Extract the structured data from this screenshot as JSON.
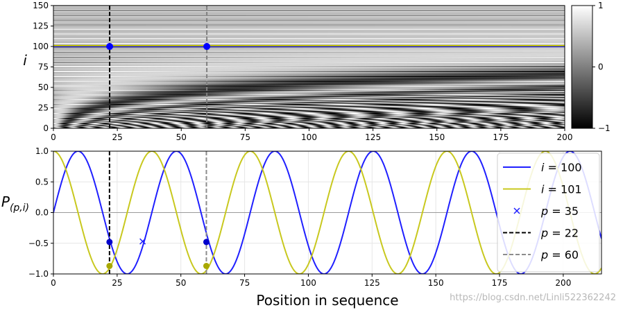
{
  "chart_data": [
    {
      "type": "heatmap",
      "ylabel": "i",
      "xlim": [
        0,
        200
      ],
      "ylim": [
        0,
        150
      ],
      "x_ticks": [
        "0",
        "25",
        "50",
        "75",
        "100",
        "125",
        "150",
        "175",
        "200"
      ],
      "y_ticks": [
        "0",
        "25",
        "50",
        "75",
        "100",
        "125",
        "150"
      ],
      "colormap": "gray",
      "colorbar": {
        "range": [
          -1,
          1
        ],
        "ticks": [
          "−1",
          "0",
          "1"
        ]
      },
      "lines": [
        {
          "type": "vertical-dashed",
          "x": 22,
          "color": "#000000"
        },
        {
          "type": "vertical-dashed",
          "x": 60,
          "color": "#808080"
        },
        {
          "type": "horizontal",
          "y": 100,
          "color": "#0000ff"
        },
        {
          "type": "horizontal",
          "y": 101,
          "color": "#bfbf00"
        }
      ],
      "markers": [
        {
          "x": 22,
          "y": 100,
          "color": "#0000ff"
        },
        {
          "x": 60,
          "y": 100,
          "color": "#0000ff"
        }
      ]
    },
    {
      "type": "line",
      "xlabel": "Position in sequence",
      "ylabel": "P",
      "ylabel_sub": "(p,i)",
      "xlim": [
        0,
        215
      ],
      "ylim": [
        -1,
        1
      ],
      "x_ticks": [
        "0",
        "25",
        "50",
        "75",
        "100",
        "125",
        "150",
        "175",
        "200"
      ],
      "y_ticks": [
        "−1.0",
        "−0.5",
        "0.0",
        "0.5",
        "1.0"
      ],
      "grid": true,
      "legend_position": "top-right",
      "series": [
        {
          "var": "i",
          "eq": " = 100",
          "color": "#1f1fff",
          "period": 38.6
        },
        {
          "var": "i",
          "eq": " = 101",
          "color": "#c8c81e",
          "period": 38.6
        }
      ],
      "reference_lines": [
        {
          "var": "p",
          "eq": " = 22",
          "x": 22,
          "color": "#000000"
        },
        {
          "var": "p",
          "eq": " = 60",
          "x": 60,
          "color": "#8c8c8c"
        }
      ],
      "highlight_point": {
        "var": "p",
        "eq": " = 35",
        "x": 35,
        "y": -0.47,
        "color": "#1f1fff"
      },
      "markers": [
        {
          "x": 22,
          "y": -0.48,
          "color": "#0000cc"
        },
        {
          "x": 22,
          "y": -0.87,
          "color": "#a8a800"
        },
        {
          "x": 60,
          "y": -0.48,
          "color": "#0000cc"
        },
        {
          "x": 60,
          "y": -0.87,
          "color": "#a8a800"
        }
      ]
    }
  ],
  "watermark": "https://blog.csdn.net/Linli522362242"
}
